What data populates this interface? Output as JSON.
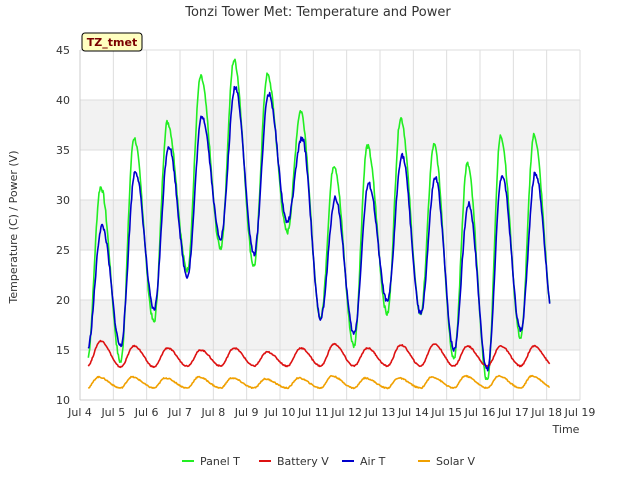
{
  "chart_data": {
    "type": "line",
    "title": "Tonzi Tower Met: Temperature and Power",
    "xlabel": "Time",
    "ylabel": "Temperature (C) / Power (V)",
    "site_tag": "TZ_tmet",
    "xlim": [
      4,
      19
    ],
    "ylim": [
      10,
      45
    ],
    "x_ticks": [
      4,
      5,
      6,
      7,
      8,
      9,
      10,
      11,
      12,
      13,
      14,
      15,
      16,
      17,
      18,
      19
    ],
    "x_tick_labels": [
      "Jul 4",
      "Jul 5",
      "Jul 6",
      "Jul 7",
      "Jul 8",
      "Jul 9",
      "Jul 10",
      "Jul 11",
      "Jul 12",
      "Jul 13",
      "Jul 14",
      "Jul 15",
      "Jul 16",
      "Jul 17",
      "Jul 18",
      "Jul 19"
    ],
    "y_ticks": [
      10,
      15,
      20,
      25,
      30,
      35,
      40,
      45
    ],
    "y_tick_labels": [
      "10",
      "15",
      "20",
      "25",
      "30",
      "35",
      "40",
      "45"
    ],
    "x_start": 4.25,
    "x_end": 18.1,
    "series": [
      {
        "name": "Panel T",
        "color": "#22ee22",
        "peak_hour": 0.62,
        "mins": [
          14.0,
          13.8,
          17.8,
          23.0,
          25.2,
          23.4,
          26.8,
          18.2,
          15.4,
          18.6,
          18.6,
          14.2,
          11.9,
          16.2,
          17.4
        ],
        "maxs": [
          31.3,
          36.2,
          37.8,
          42.3,
          44.0,
          42.5,
          38.9,
          33.5,
          35.4,
          38.2,
          35.5,
          33.6,
          36.4,
          36.5
        ]
      },
      {
        "name": "Battery V",
        "color": "#dd1111",
        "peak_hour": 0.62,
        "mins": [
          13.4,
          13.3,
          13.3,
          13.4,
          13.4,
          13.4,
          13.4,
          13.4,
          13.4,
          13.4,
          13.4,
          13.4,
          13.4,
          13.4,
          13.4
        ],
        "maxs": [
          15.9,
          15.4,
          15.2,
          15.0,
          15.2,
          14.8,
          15.2,
          15.6,
          15.2,
          15.5,
          15.6,
          15.4,
          15.4,
          15.4
        ]
      },
      {
        "name": "Air T",
        "color": "#0000cc",
        "peak_hour": 0.66,
        "mins": [
          15.0,
          15.4,
          19.0,
          22.4,
          26.2,
          24.6,
          27.8,
          18.2,
          16.6,
          19.8,
          18.6,
          15.0,
          13.0,
          17.0,
          18.0
        ],
        "maxs": [
          27.4,
          32.9,
          35.4,
          38.4,
          41.3,
          40.6,
          36.2,
          30.2,
          31.6,
          34.5,
          32.2,
          29.6,
          32.5,
          32.7
        ]
      },
      {
        "name": "Solar V",
        "color": "#f0a000",
        "peak_hour": 0.55,
        "mins": [
          11.2,
          11.2,
          11.2,
          11.2,
          11.2,
          11.2,
          11.2,
          11.2,
          11.2,
          11.2,
          11.2,
          11.2,
          11.2,
          11.2,
          11.2
        ],
        "maxs": [
          12.3,
          12.3,
          12.2,
          12.3,
          12.2,
          12.1,
          12.2,
          12.4,
          12.2,
          12.2,
          12.3,
          12.4,
          12.4,
          12.4
        ]
      }
    ],
    "legend_position": "bottom-center",
    "background_bands": true
  }
}
